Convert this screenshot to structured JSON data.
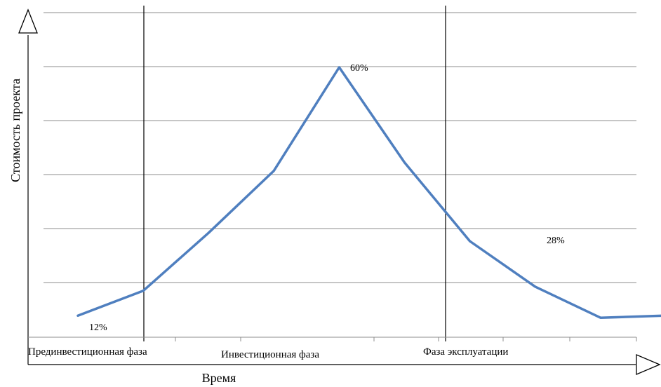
{
  "chart_data": {
    "type": "line",
    "title": "",
    "xlabel": "Время",
    "ylabel": "Стоимость проекта",
    "x": [
      1,
      2,
      3,
      4,
      5,
      6,
      7,
      8,
      9,
      10
    ],
    "series": [
      {
        "values": [
          12,
          13.2,
          16,
          19,
          24,
          19.4,
          15.6,
          13.4,
          11.9,
          12
        ],
        "color": "#4f7fbf"
      }
    ],
    "ylim": [
      11.5,
      24
    ],
    "grid": true,
    "legend": "none",
    "phases": [
      {
        "label": "Прединвестиционная  фаза"
      },
      {
        "label": "Инвестиционная фаза"
      },
      {
        "label": "Фаза эксплуатации"
      }
    ],
    "annotations": [
      {
        "text": "12%"
      },
      {
        "text": "60%"
      },
      {
        "text": "28%"
      }
    ]
  }
}
